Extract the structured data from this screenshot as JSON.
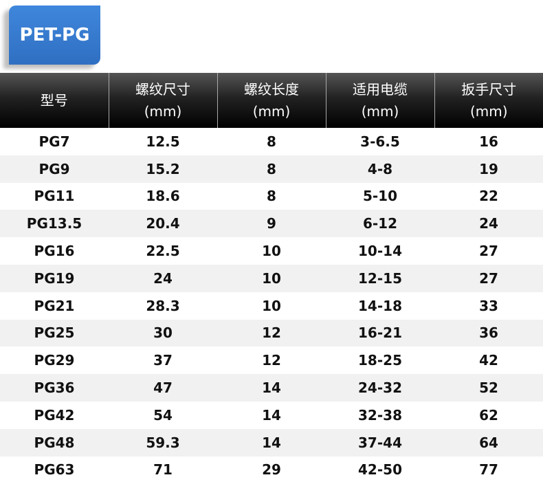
{
  "badge": {
    "label": "PET-PG",
    "color": "#3a7fd5"
  },
  "table": {
    "headers": [
      {
        "line1": "型号",
        "line2": ""
      },
      {
        "line1": "螺纹尺寸",
        "line2": "(mm)"
      },
      {
        "line1": "螺纹长度",
        "line2": "(mm)"
      },
      {
        "line1": "适用电缆",
        "line2": "(mm)"
      },
      {
        "line1": "扳手尺寸",
        "line2": "(mm)"
      }
    ],
    "rows": [
      [
        "PG7",
        "12.5",
        "8",
        "3-6.5",
        "16"
      ],
      [
        "PG9",
        "15.2",
        "8",
        "4-8",
        "19"
      ],
      [
        "PG11",
        "18.6",
        "8",
        "5-10",
        "22"
      ],
      [
        "PG13.5",
        "20.4",
        "9",
        "6-12",
        "24"
      ],
      [
        "PG16",
        "22.5",
        "10",
        "10-14",
        "27"
      ],
      [
        "PG19",
        "24",
        "10",
        "12-15",
        "27"
      ],
      [
        "PG21",
        "28.3",
        "10",
        "14-18",
        "33"
      ],
      [
        "PG25",
        "30",
        "12",
        "16-21",
        "36"
      ],
      [
        "PG29",
        "37",
        "12",
        "18-25",
        "42"
      ],
      [
        "PG36",
        "47",
        "14",
        "24-32",
        "52"
      ],
      [
        "PG42",
        "54",
        "14",
        "32-38",
        "62"
      ],
      [
        "PG48",
        "59.3",
        "14",
        "37-44",
        "64"
      ],
      [
        "PG63",
        "71",
        "29",
        "42-50",
        "77"
      ]
    ]
  }
}
